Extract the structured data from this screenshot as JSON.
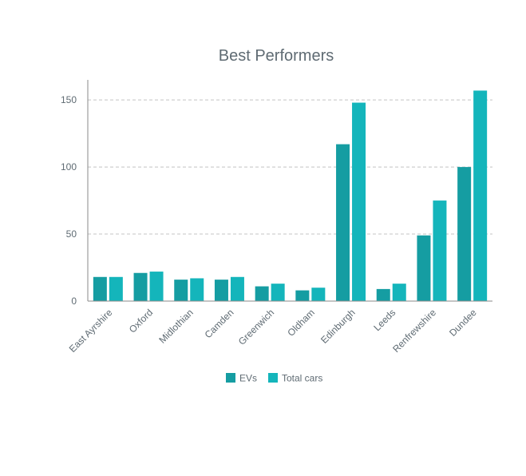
{
  "chart_data": {
    "type": "bar",
    "title": "Best Performers",
    "xlabel": "",
    "ylabel": "",
    "categories": [
      "East Ayrshire",
      "Oxford",
      "Midlothian",
      "Camden",
      "Greenwich",
      "Oldham",
      "Edinburgh",
      "Leeds",
      "Renfrewshire",
      "Dundee"
    ],
    "series": [
      {
        "name": "EVs",
        "color": "#159da2",
        "values": [
          18,
          21,
          16,
          16,
          11,
          8,
          117,
          9,
          49,
          100
        ]
      },
      {
        "name": "Total cars",
        "color": "#14b5bb",
        "values": [
          18,
          22,
          17,
          18,
          13,
          10,
          148,
          13,
          75,
          157
        ]
      }
    ],
    "ylim": [
      0,
      165
    ],
    "yticks": [
      0,
      50,
      100,
      150
    ],
    "grid": true,
    "legend": "bottom"
  }
}
